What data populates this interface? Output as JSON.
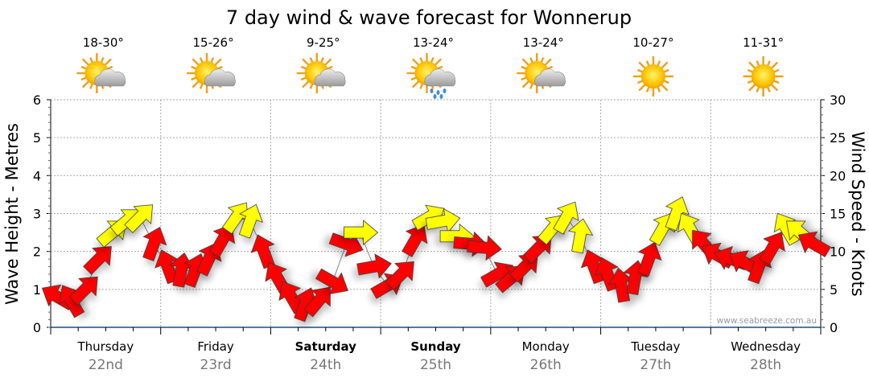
{
  "chart_data": {
    "type": "scatter",
    "title": "7 day wind & wave forecast for Wonnerup",
    "ylabel_left": "Wave Height - Metres",
    "ylabel_right": "Wind Speed - Knots",
    "ylim_left": [
      0,
      6
    ],
    "ylim_right": [
      0,
      30
    ],
    "yticks_left": [
      "0",
      "1",
      "2",
      "3",
      "4",
      "5",
      "6"
    ],
    "yticks_right": [
      "0",
      "5",
      "10",
      "15",
      "20",
      "25",
      "30"
    ],
    "grid": true,
    "watermark": "www.seabreeze.com.au",
    "days": [
      {
        "day": "Thursday",
        "date": "22nd",
        "bold": false,
        "temp": "18-30°",
        "icon": "partly-cloudy"
      },
      {
        "day": "Friday",
        "date": "23rd",
        "bold": false,
        "temp": "15-26°",
        "icon": "partly-cloudy"
      },
      {
        "day": "Saturday",
        "date": "24th",
        "bold": true,
        "temp": "9-25°",
        "icon": "partly-cloudy"
      },
      {
        "day": "Sunday",
        "date": "25th",
        "bold": true,
        "temp": "13-24°",
        "icon": "showers"
      },
      {
        "day": "Monday",
        "date": "26th",
        "bold": false,
        "temp": "13-24°",
        "icon": "partly-cloudy"
      },
      {
        "day": "Tuesday",
        "date": "27th",
        "bold": false,
        "temp": "10-27°",
        "icon": "sunny"
      },
      {
        "day": "Wednesday",
        "date": "28th",
        "bold": false,
        "temp": "11-31°",
        "icon": "sunny"
      }
    ],
    "wind_interval_hours": 3,
    "wind_speed_knots": [
      4,
      3.5,
      5,
      9,
      12.5,
      14,
      14.5,
      11,
      8,
      7.5,
      7.5,
      9,
      11.5,
      14.5,
      14,
      10,
      6.5,
      4,
      3,
      3.5,
      6,
      11,
      12.5,
      8,
      5.5,
      7,
      11.5,
      14.5,
      14,
      12,
      11,
      10.5,
      7,
      6.5,
      8,
      10.5,
      13,
      14.5,
      12,
      8,
      7,
      5.5,
      6.5,
      9,
      13,
      15,
      13,
      11,
      9.5,
      9,
      8.5,
      8,
      10.5,
      13,
      12.5,
      11
    ],
    "wind_heading_deg": [
      300,
      330,
      45,
      45,
      50,
      50,
      45,
      20,
      340,
      10,
      20,
      25,
      30,
      35,
      20,
      340,
      330,
      330,
      20,
      40,
      120,
      110,
      90,
      80,
      60,
      45,
      30,
      60,
      80,
      90,
      95,
      95,
      60,
      50,
      45,
      45,
      40,
      30,
      10,
      340,
      340,
      350,
      10,
      20,
      30,
      20,
      330,
      320,
      300,
      290,
      300,
      20,
      30,
      330,
      310,
      300
    ],
    "colors": {
      "strong": "#ffff00",
      "light": "#ff0000",
      "axis": "#1f4e79",
      "grid": "#aaaaaa",
      "date": "#777777"
    },
    "strong_threshold_knots": 12
  }
}
